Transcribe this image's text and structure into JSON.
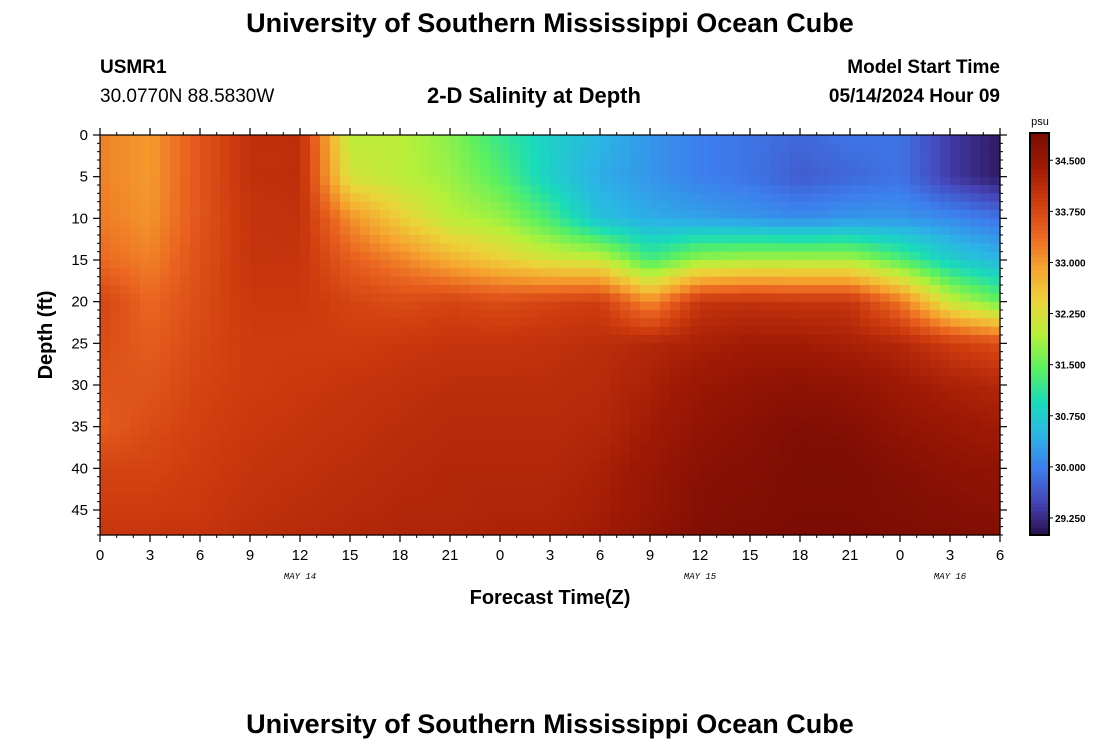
{
  "page": {
    "title_top": "University of Southern Mississippi Ocean Cube",
    "title_bottom": "University of Southern Mississippi Ocean Cube",
    "station_id": "USMR1",
    "coordinates": "30.0770N  88.5830W",
    "subtitle": "2-D Salinity at Depth",
    "model_start_label": "Model Start Time",
    "model_start_value": "05/14/2024 Hour 09"
  },
  "colors": {
    "background": "#ffffff",
    "axis": "#000000"
  },
  "chart_data": {
    "type": "heatmap",
    "title": "2-D Salinity at Depth",
    "xlabel": "Forecast Time(Z)",
    "ylabel": "Depth (ft)",
    "xlim": [
      0,
      54
    ],
    "ylim": [
      0,
      48
    ],
    "x_tick_values": [
      0,
      3,
      6,
      9,
      12,
      15,
      18,
      21,
      24,
      27,
      30,
      33,
      36,
      39,
      42,
      45,
      48,
      51,
      54
    ],
    "x_tick_labels": [
      "0",
      "3",
      "6",
      "9",
      "12",
      "15",
      "18",
      "21",
      "0",
      "3",
      "6",
      "9",
      "12",
      "15",
      "18",
      "21",
      "0",
      "3",
      "6"
    ],
    "y_tick_values": [
      0,
      5,
      10,
      15,
      20,
      25,
      30,
      35,
      40,
      45
    ],
    "y_tick_labels": [
      "0",
      "5",
      "10",
      "15",
      "20",
      "25",
      "30",
      "35",
      "40",
      "45"
    ],
    "date_labels": [
      {
        "text": "MAY 14",
        "hours_from_start": 12
      },
      {
        "text": "MAY 15",
        "hours_from_start": 36
      },
      {
        "text": "MAY 16",
        "hours_from_start": 51
      }
    ],
    "colorbar": {
      "unit_label": "psu",
      "min": 29.0,
      "max": 34.9,
      "tick_values": [
        29.25,
        30.0,
        30.75,
        31.5,
        32.25,
        33.0,
        33.75,
        34.5
      ],
      "tick_labels": [
        "29.250",
        "30.000",
        "30.750",
        "31.500",
        "32.250",
        "33.000",
        "33.750",
        "34.500"
      ],
      "colormap": [
        "#2a0e4e",
        "#4545b8",
        "#3d7ded",
        "#2bb5e5",
        "#19dcb8",
        "#5cf05f",
        "#b6f03a",
        "#ecd33a",
        "#f6a32f",
        "#ea6420",
        "#cd3a0e",
        "#a01a05",
        "#7a0b03"
      ]
    },
    "time_hours": [
      0,
      3,
      6,
      9,
      12,
      15,
      18,
      21,
      24,
      27,
      30,
      33,
      36,
      39,
      42,
      45,
      48,
      51,
      54
    ],
    "depth_ft": [
      0,
      5,
      10,
      15,
      20,
      25,
      30,
      35,
      40,
      45,
      48
    ],
    "salinity_psu": [
      [
        33.2,
        33.2,
        33.25,
        33.4,
        33.8,
        33.7,
        33.6,
        33.5,
        33.8,
        33.9,
        34.0
      ],
      [
        33.0,
        33.0,
        33.05,
        33.2,
        33.4,
        33.5,
        33.6,
        33.7,
        33.8,
        33.9,
        34.0
      ],
      [
        33.6,
        33.6,
        33.6,
        33.65,
        33.7,
        33.75,
        33.8,
        33.85,
        33.9,
        33.95,
        34.0
      ],
      [
        34.05,
        34.05,
        34.0,
        34.0,
        33.95,
        33.9,
        33.9,
        33.95,
        34.0,
        34.05,
        34.1
      ],
      [
        34.1,
        34.1,
        34.05,
        34.0,
        33.95,
        33.9,
        33.95,
        34.0,
        34.05,
        34.1,
        34.15
      ],
      [
        32.0,
        32.2,
        33.1,
        33.5,
        33.8,
        33.9,
        34.0,
        34.05,
        34.1,
        34.15,
        34.2
      ],
      [
        32.0,
        32.0,
        32.5,
        33.2,
        33.7,
        33.95,
        34.05,
        34.1,
        34.15,
        34.2,
        34.25
      ],
      [
        31.7,
        31.8,
        32.0,
        32.8,
        33.8,
        34.0,
        34.1,
        34.15,
        34.2,
        34.2,
        34.25
      ],
      [
        31.2,
        31.4,
        31.8,
        32.5,
        33.7,
        34.0,
        34.1,
        34.15,
        34.2,
        34.25,
        34.3
      ],
      [
        30.8,
        30.8,
        31.3,
        32.2,
        33.8,
        34.05,
        34.1,
        34.15,
        34.2,
        34.25,
        34.3
      ],
      [
        30.5,
        30.4,
        30.6,
        32.1,
        33.9,
        34.1,
        34.15,
        34.2,
        34.3,
        34.35,
        34.4
      ],
      [
        30.2,
        30.2,
        30.4,
        31.3,
        33.1,
        34.2,
        34.3,
        34.4,
        34.5,
        34.55,
        34.6
      ],
      [
        30.0,
        30.0,
        30.3,
        31.8,
        34.0,
        34.3,
        34.5,
        34.6,
        34.7,
        34.75,
        34.8
      ],
      [
        29.9,
        29.9,
        30.2,
        31.9,
        34.05,
        34.4,
        34.6,
        34.7,
        34.75,
        34.8,
        34.85
      ],
      [
        29.8,
        29.7,
        30.1,
        31.9,
        34.0,
        34.4,
        34.65,
        34.8,
        34.85,
        34.85,
        34.9
      ],
      [
        29.9,
        29.8,
        30.2,
        31.9,
        34.0,
        34.3,
        34.6,
        34.75,
        34.85,
        34.85,
        34.9
      ],
      [
        29.9,
        29.9,
        30.2,
        31.4,
        33.3,
        34.2,
        34.45,
        34.6,
        34.75,
        34.8,
        34.85
      ],
      [
        29.4,
        29.4,
        30.1,
        30.8,
        32.1,
        33.9,
        34.3,
        34.5,
        34.65,
        34.75,
        34.8
      ],
      [
        29.1,
        29.1,
        29.9,
        30.5,
        31.5,
        33.7,
        34.2,
        34.4,
        34.6,
        34.7,
        34.8
      ]
    ]
  }
}
